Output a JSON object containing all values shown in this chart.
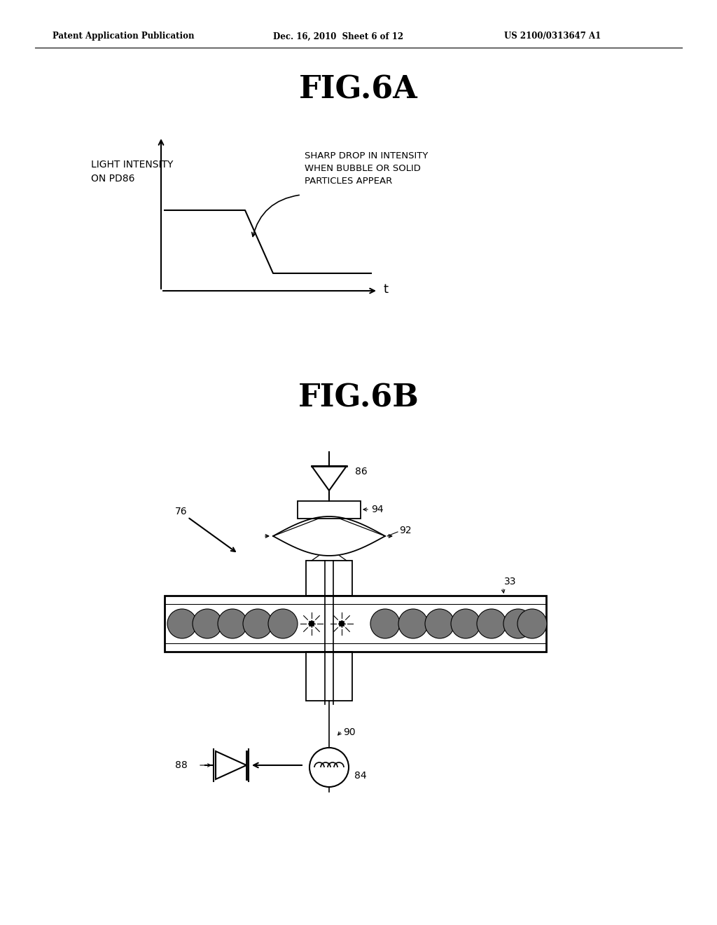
{
  "background_color": "#ffffff",
  "header_left": "Patent Application Publication",
  "header_center": "Dec. 16, 2010  Sheet 6 of 12",
  "header_right": "US 2100/0313647 A1",
  "fig6a_title": "FIG.6A",
  "fig6b_title": "FIG.6B",
  "ylabel_line1": "LIGHT INTENSITY",
  "ylabel_line2": "ON PD86",
  "xlabel": "t",
  "annotation": "SHARP DROP IN INTENSITY\nWHEN BUBBLE OR SOLID\nPARTICLES APPEAR",
  "label_76": "76",
  "label_86": "86",
  "label_88": "88",
  "label_90": "90",
  "label_92": "92",
  "label_94": "94",
  "label_33": "33",
  "label_84": "84"
}
